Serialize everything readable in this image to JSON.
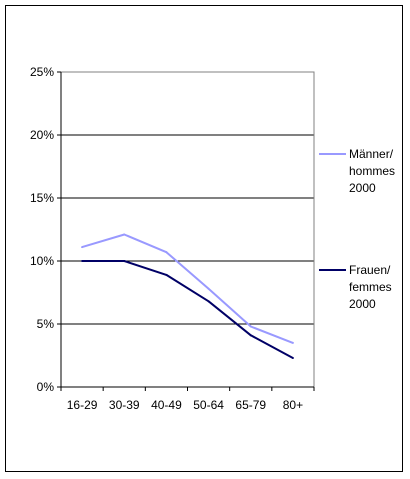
{
  "chart_data": {
    "type": "line",
    "categories": [
      "16-29",
      "30-39",
      "40-49",
      "50-64",
      "65-79",
      "80+"
    ],
    "series": [
      {
        "name": "Männer/ hommes 2000",
        "legend_lines": [
          "Männer/",
          "hommes",
          "2000"
        ],
        "color": "#9999ff",
        "values": [
          11.1,
          12.1,
          10.7,
          7.8,
          4.8,
          3.5
        ]
      },
      {
        "name": "Frauen/ femmes 2000",
        "legend_lines": [
          "Frauen/",
          "femmes",
          "2000"
        ],
        "color": "#000066",
        "values": [
          10.0,
          10.0,
          8.9,
          6.8,
          4.1,
          2.3
        ]
      }
    ],
    "ylim": [
      0,
      25
    ],
    "yticks": [
      0,
      5,
      10,
      15,
      20,
      25
    ],
    "ytick_labels": [
      "0%",
      "5%",
      "10%",
      "15%",
      "20%",
      "25%"
    ],
    "grid": true,
    "legend_position": "right",
    "title": "",
    "xlabel": "",
    "ylabel": ""
  }
}
